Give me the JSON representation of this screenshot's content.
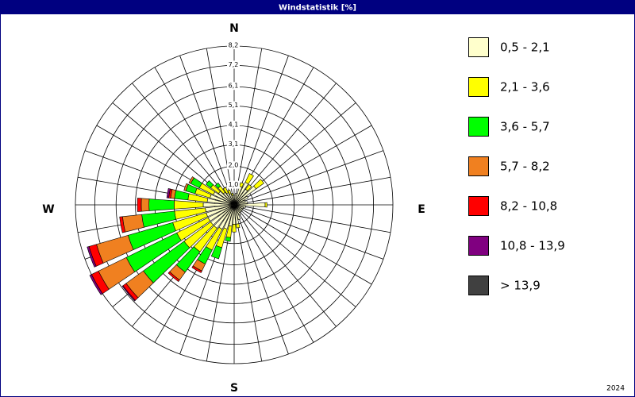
{
  "chart_data": {
    "type": "windrose",
    "title": "Windstatistik [%]",
    "footer": "2024",
    "compass_labels": [
      "N",
      "E",
      "S",
      "W"
    ],
    "x": [
      0,
      10,
      20,
      30,
      40,
      50,
      60,
      70,
      80,
      90,
      100,
      110,
      120,
      130,
      140,
      150,
      160,
      170,
      180,
      190,
      200,
      210,
      220,
      230,
      240,
      250,
      260,
      270,
      280,
      290,
      300,
      310,
      320,
      330,
      340,
      350
    ],
    "rlim": [
      0,
      8.2
    ],
    "rticks": [
      {
        "value": 1.0,
        "label": "1,0"
      },
      {
        "value": 2.0,
        "label": "2,0"
      },
      {
        "value": 3.1,
        "label": "3,1"
      },
      {
        "value": 4.1,
        "label": "4,1"
      },
      {
        "value": 5.1,
        "label": "5,1"
      },
      {
        "value": 6.1,
        "label": "6,1"
      },
      {
        "value": 7.2,
        "label": "7,2"
      },
      {
        "value": 8.2,
        "label": "8,2"
      }
    ],
    "series": [
      {
        "name": "0,5 - 2,1",
        "color": "#ffffcc",
        "values": [
          0.5,
          0.6,
          1.0,
          1.3,
          1.0,
          1.4,
          0.8,
          0.6,
          0.7,
          1.6,
          0.6,
          0.5,
          0.5,
          0.5,
          0.5,
          0.6,
          0.8,
          1.0,
          1.0,
          1.1,
          1.3,
          1.4,
          1.5,
          1.5,
          1.5,
          1.5,
          1.5,
          1.6,
          1.4,
          1.3,
          1.2,
          1.0,
          0.8,
          0.7,
          0.6,
          0.5
        ]
      },
      {
        "name": "2,1 - 3,6",
        "color": "#ffff00",
        "values": [
          0,
          0,
          0.2,
          0.5,
          0.3,
          0.5,
          0,
          0,
          0,
          0.1,
          0,
          0,
          0,
          0,
          0,
          0,
          0,
          0.2,
          0.4,
          0.6,
          1.0,
          1.2,
          1.5,
          1.7,
          1.8,
          1.8,
          1.6,
          1.5,
          1.0,
          0.8,
          0.8,
          0.5,
          0.4,
          0.3,
          0.2,
          0.1
        ]
      },
      {
        "name": "3,6 - 5,7",
        "color": "#00ff00",
        "values": [
          0,
          0,
          0,
          0,
          0,
          0,
          0,
          0,
          0,
          0,
          0,
          0,
          0,
          0,
          0,
          0,
          0,
          0,
          0,
          0.2,
          0.6,
          0.8,
          1.3,
          2.6,
          2.9,
          2.4,
          1.7,
          1.3,
          0.7,
          0.5,
          0.5,
          0.3,
          0.2,
          0,
          0,
          0
        ]
      },
      {
        "name": "5,7 - 8,2",
        "color": "#f08020",
        "values": [
          0,
          0,
          0,
          0,
          0,
          0,
          0,
          0,
          0,
          0,
          0,
          0,
          0,
          0,
          0,
          0,
          0,
          0,
          0,
          0,
          0,
          0.4,
          0.5,
          1.1,
          1.6,
          1.7,
          1.0,
          0.4,
          0.2,
          0.1,
          0.1,
          0,
          0,
          0,
          0,
          0
        ]
      },
      {
        "name": "8,2 - 10,8",
        "color": "#ff0000",
        "values": [
          0,
          0,
          0,
          0,
          0,
          0,
          0,
          0,
          0,
          0,
          0,
          0,
          0,
          0,
          0,
          0,
          0,
          0,
          0,
          0,
          0,
          0.1,
          0.1,
          0.2,
          0.4,
          0.4,
          0.15,
          0.2,
          0.1,
          0,
          0,
          0,
          0,
          0,
          0,
          0
        ]
      },
      {
        "name": "10,8 - 13,9",
        "color": "#800080",
        "values": [
          0,
          0,
          0,
          0,
          0,
          0,
          0,
          0,
          0,
          0,
          0,
          0,
          0,
          0,
          0,
          0,
          0,
          0,
          0,
          0,
          0,
          0,
          0,
          0.05,
          0.1,
          0.1,
          0,
          0,
          0.1,
          0,
          0,
          0,
          0,
          0,
          0,
          0
        ]
      },
      {
        "name": "> 13,9",
        "color": "#404040",
        "values": [
          0,
          0,
          0,
          0,
          0,
          0,
          0,
          0,
          0,
          0,
          0,
          0,
          0,
          0,
          0,
          0,
          0,
          0,
          0,
          0,
          0,
          0,
          0,
          0,
          0,
          0,
          0,
          0,
          0,
          0,
          0,
          0,
          0,
          0,
          0,
          0
        ]
      }
    ]
  }
}
